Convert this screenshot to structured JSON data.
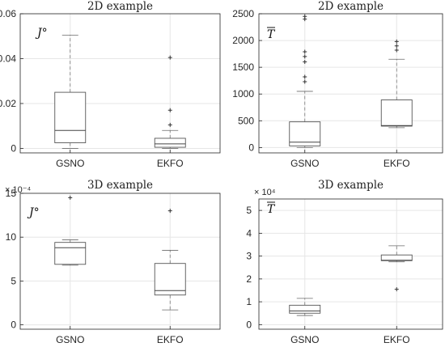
{
  "chart_data": [
    {
      "type": "boxplot",
      "title": "2D example",
      "annotation": "J°",
      "categories": [
        "GSNO",
        "EKFO"
      ],
      "ylim": [
        -0.002,
        0.06
      ],
      "yticks": [
        0,
        0.02,
        0.04,
        0.06
      ],
      "ytick_labels": [
        "0",
        "0.02",
        "0.04",
        "0.06"
      ],
      "multiplier": "",
      "grid": true,
      "boxes": [
        {
          "category": "GSNO",
          "whisker_low": 0.0,
          "q1": 0.0025,
          "median": 0.008,
          "q3": 0.025,
          "whisker_high": 0.0505,
          "outliers": []
        },
        {
          "category": "EKFO",
          "whisker_low": 0.0,
          "q1": 0.0005,
          "median": 0.002,
          "q3": 0.0045,
          "whisker_high": 0.008,
          "outliers": [
            0.0105,
            0.017,
            0.0405
          ]
        }
      ]
    },
    {
      "type": "boxplot",
      "title": "2D example",
      "annotation": "T",
      "annotation_overline": true,
      "categories": [
        "GSNO",
        "EKFO"
      ],
      "ylim": [
        -100,
        2500
      ],
      "yticks": [
        0,
        500,
        1000,
        1500,
        2000,
        2500
      ],
      "ytick_labels": [
        "0",
        "500",
        "1000",
        "1500",
        "2000",
        "2500"
      ],
      "multiplier": "",
      "grid": true,
      "boxes": [
        {
          "category": "GSNO",
          "whisker_low": 0,
          "q1": 30,
          "median": 100,
          "q3": 480,
          "whisker_high": 1050,
          "outliers": [
            1230,
            1320,
            1600,
            1700,
            1790,
            2400,
            2450
          ]
        },
        {
          "category": "EKFO",
          "whisker_low": 370,
          "q1": 400,
          "median": 410,
          "q3": 890,
          "whisker_high": 1650,
          "outliers": [
            1820,
            1900,
            1980
          ]
        }
      ]
    },
    {
      "type": "boxplot",
      "title": "3D example",
      "annotation": "J°",
      "categories": [
        "GSNO",
        "EKFO"
      ],
      "ylim": [
        -0.5,
        15
      ],
      "yticks": [
        0,
        5,
        10,
        15
      ],
      "ytick_labels": [
        "0",
        "5",
        "10",
        "15"
      ],
      "multiplier": "× 10⁻⁴",
      "grid": true,
      "boxes": [
        {
          "category": "GSNO",
          "whisker_low": 6.8,
          "q1": 6.9,
          "median": 8.8,
          "q3": 9.4,
          "whisker_high": 9.7,
          "outliers": [
            14.5
          ]
        },
        {
          "category": "EKFO",
          "whisker_low": 1.7,
          "q1": 3.4,
          "median": 3.9,
          "q3": 7.0,
          "whisker_high": 8.5,
          "outliers": [
            13.0
          ]
        }
      ]
    },
    {
      "type": "boxplot",
      "title": "3D example",
      "annotation": "T",
      "annotation_overline": true,
      "categories": [
        "GSNO",
        "EKFO"
      ],
      "ylim": [
        -0.2,
        5.5
      ],
      "yticks": [
        0,
        1,
        2,
        3,
        4,
        5
      ],
      "ytick_labels": [
        "0",
        "1",
        "2",
        "3",
        "4",
        "5"
      ],
      "multiplier": "× 10⁴",
      "grid": true,
      "boxes": [
        {
          "category": "GSNO",
          "whisker_low": 0.4,
          "q1": 0.5,
          "median": 0.6,
          "q3": 0.85,
          "whisker_high": 1.15,
          "outliers": []
        },
        {
          "category": "EKFO",
          "whisker_low": 2.75,
          "q1": 2.8,
          "median": 2.82,
          "q3": 3.05,
          "whisker_high": 3.45,
          "outliers": [
            1.55
          ]
        }
      ]
    }
  ]
}
